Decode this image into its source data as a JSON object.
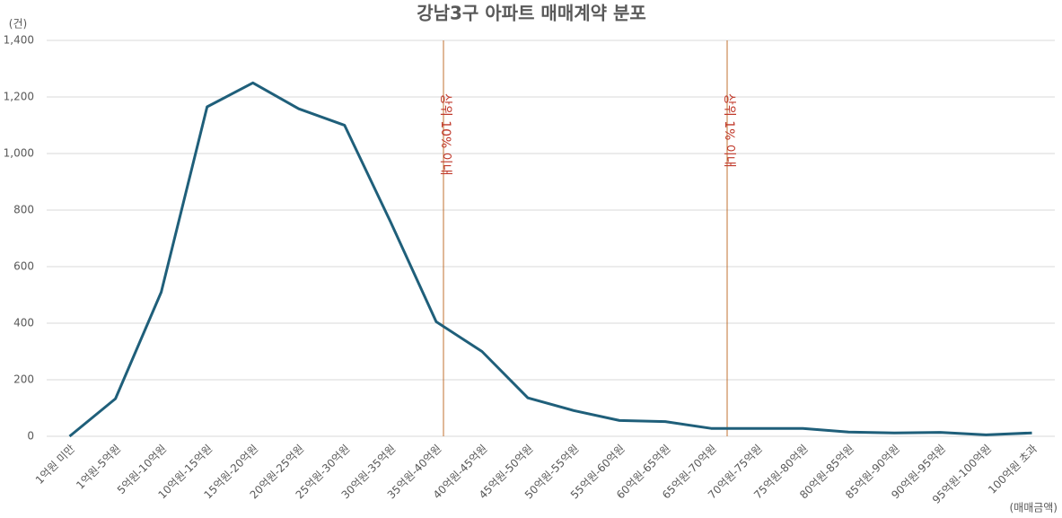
{
  "chart_data": {
    "type": "line",
    "title": "강남3구 아파트 매매계약 분포",
    "y_axis_label": "(건)",
    "x_axis_label": "(매매금액)",
    "categories": [
      "1억원 미만",
      "1억원-5억원",
      "5억원-10억원",
      "10억원-15억원",
      "15억원-20억원",
      "20억원-25억원",
      "25억원-30억원",
      "30억원-35억원",
      "35억원-40억원",
      "40억원-45억원",
      "45억원-50억원",
      "50억원-55억원",
      "55억원-60억원",
      "60억원-65억원",
      "65억원-70억원",
      "70억원-75억원",
      "75억원-80억원",
      "80억원-85억원",
      "85억원-90억원",
      "90억원-95억원",
      "95억원-100억원",
      "100억원 초과"
    ],
    "series": [
      {
        "color": "#1f5f7a",
        "values": [
          0,
          133,
          510,
          1165,
          1250,
          1158,
          1100,
          760,
          405,
          300,
          136,
          91,
          56,
          52,
          28,
          28,
          28,
          15,
          12,
          14,
          5,
          12
        ]
      }
    ],
    "ylim": [
      0,
      1400
    ],
    "yticks": [
      0,
      200,
      400,
      600,
      800,
      {
        "value": 1000,
        "label": "1,000"
      },
      {
        "value": 1200,
        "label": "1,200"
      },
      {
        "value": 1400,
        "label": "1,400"
      }
    ],
    "grid": true,
    "annotations": [
      {
        "text": "상위 10% 이내",
        "color": "#c0392b",
        "line_color": "#c07030"
      },
      {
        "text": "상위 1% 이내",
        "color": "#c0392b",
        "line_color": "#c07030"
      }
    ]
  }
}
